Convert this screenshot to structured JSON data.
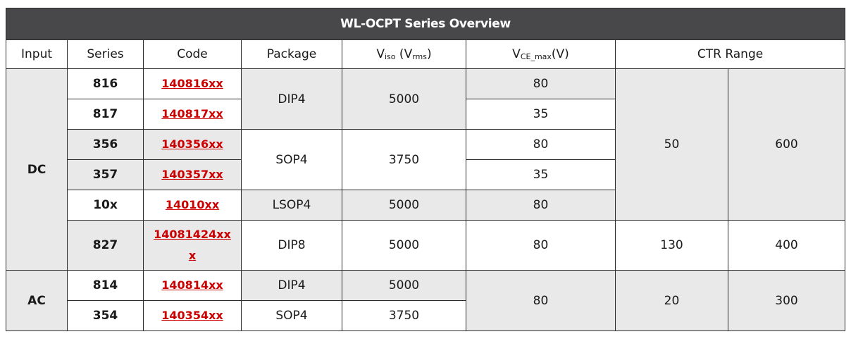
{
  "title": "WL-OCPT Series Overview",
  "headers": {
    "input": "Input",
    "series": "Series",
    "code": "Code",
    "package": "Package",
    "viso_main": "V",
    "viso_sub": "iso",
    "viso_unit_open": " (V",
    "viso_unit_sub": "rms",
    "viso_unit_close": ")",
    "vce_main": "V",
    "vce_sub": "CE_max",
    "vce_unit": "(V)",
    "ctr": "CTR Range"
  },
  "groups": [
    {
      "input": "DC"
    },
    {
      "input": "AC"
    }
  ],
  "rows": [
    {
      "series": "816",
      "code": "140816xx",
      "package": "DIP4",
      "viso": "5000",
      "vce": "80",
      "ctr_min": "50",
      "ctr_max": "600"
    },
    {
      "series": "817",
      "code": "140817xx",
      "vce": "35"
    },
    {
      "series": "356",
      "code": "140356xx",
      "package": "SOP4",
      "viso": "3750",
      "vce": "80"
    },
    {
      "series": "357",
      "code": "140357xx",
      "vce": "35"
    },
    {
      "series": "10x",
      "code": "14010xx",
      "package": "LSOP4",
      "viso": "5000",
      "vce": "80"
    },
    {
      "series": "827",
      "code_line1": "14081424xx",
      "code_line2": "x",
      "package": "DIP8",
      "viso": "5000",
      "vce": "80",
      "ctr_min": "130",
      "ctr_max": "400"
    },
    {
      "series": "814",
      "code": "140814xx",
      "package": "DIP4",
      "viso": "5000",
      "vce": "80",
      "ctr_min": "20",
      "ctr_max": "300"
    },
    {
      "series": "354",
      "code": "140354xx",
      "package": "SOP4",
      "viso": "3750"
    }
  ]
}
